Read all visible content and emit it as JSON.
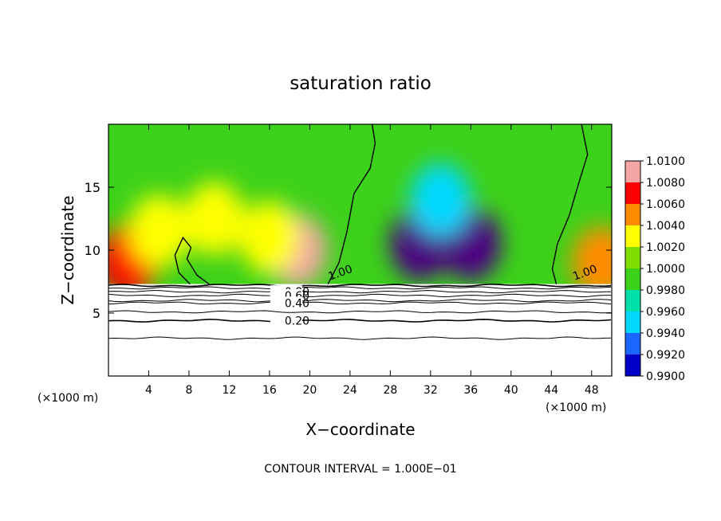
{
  "chart_data": {
    "type": "heatmap",
    "title": "saturation ratio",
    "xlabel": "X−coordinate",
    "ylabel": "Z−coordinate",
    "x_unit_left": "(×1000 m)",
    "x_unit_right": "(×1000 m)",
    "footer": "CONTOUR INTERVAL = 1.000E−01",
    "xlim": [
      0,
      50
    ],
    "ylim": [
      0,
      20
    ],
    "x_ticks": [
      "4",
      "8",
      "12",
      "16",
      "20",
      "24",
      "28",
      "32",
      "36",
      "40",
      "44",
      "48"
    ],
    "y_ticks": [
      "5",
      "10",
      "15"
    ],
    "colorbar": {
      "labels": [
        "1.0100",
        "1.0080",
        "1.0060",
        "1.0040",
        "1.0020",
        "1.0000",
        "0.9980",
        "0.9960",
        "0.9940",
        "0.9920",
        "0.9900"
      ],
      "colors": [
        "#f4a6a6",
        "#ff0000",
        "#ff8c00",
        "#ffff00",
        "#7fdd00",
        "#3cd11a",
        "#00e0a8",
        "#00d8ff",
        "#1a66ff",
        "#0000c8",
        "#4b0082"
      ]
    },
    "contour_labels": [
      {
        "text": "1.00",
        "x": 22.0,
        "z": 7.6
      },
      {
        "text": "1.00",
        "x": 46.3,
        "z": 7.6
      },
      {
        "text": "0.80",
        "x": 17.5,
        "z": 6.7
      },
      {
        "text": "0.60",
        "x": 17.5,
        "z": 6.4
      },
      {
        "text": "0.40",
        "x": 17.5,
        "z": 5.8
      },
      {
        "text": "0.20",
        "x": 17.5,
        "z": 4.4
      }
    ],
    "contour_levels": [
      0.2,
      0.4,
      0.6,
      0.8,
      1.0
    ],
    "blobs": [
      {
        "x": 2,
        "z": 9.2,
        "value": 1.009
      },
      {
        "x": 5,
        "z": 11.5,
        "value": 1.004
      },
      {
        "x": 10.5,
        "z": 12.5,
        "value": 1.004
      },
      {
        "x": 18.7,
        "z": 10.0,
        "value": 1.01
      },
      {
        "x": 16,
        "z": 11.0,
        "value": 1.005
      },
      {
        "x": 31,
        "z": 10.5,
        "value": 0.99
      },
      {
        "x": 36,
        "z": 10.5,
        "value": 0.991
      },
      {
        "x": 33,
        "z": 14.0,
        "value": 0.996
      },
      {
        "x": 49,
        "z": 9.0,
        "value": 1.007
      }
    ]
  }
}
